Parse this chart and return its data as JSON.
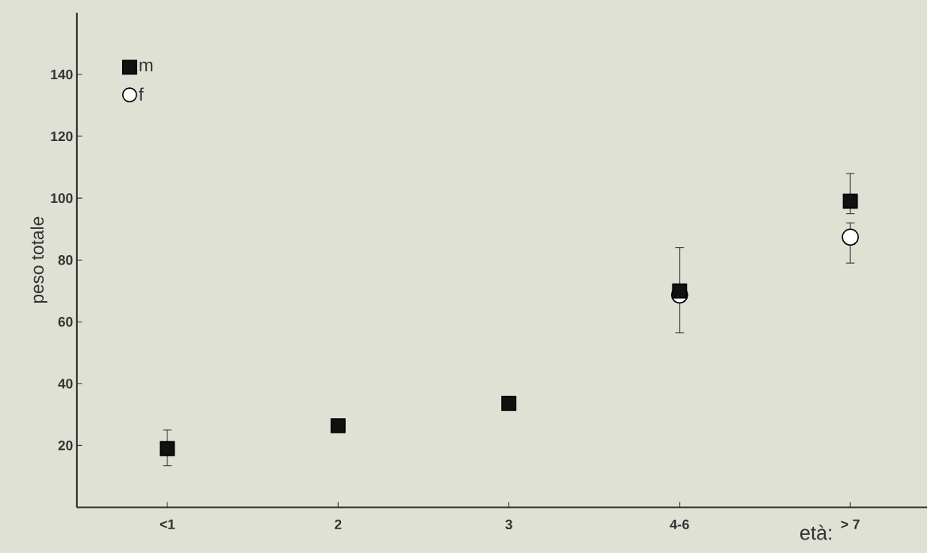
{
  "chart_data": {
    "type": "scatter",
    "xlabel": "età:",
    "ylabel": "peso totale",
    "categories": [
      "<1",
      "2",
      "3",
      "4-6",
      "> 7"
    ],
    "series": [
      {
        "name": "m",
        "color": "#111111",
        "marker": "square",
        "values": [
          19,
          26.4,
          33.6,
          70,
          99
        ],
        "errors": [
          [
            13.5,
            25
          ],
          null,
          null,
          [
            56.5,
            84
          ],
          [
            95,
            108
          ]
        ]
      },
      {
        "name": "f",
        "color": "#ffffff",
        "marker": "circle",
        "values": [
          null,
          null,
          null,
          68.7,
          87.4
        ],
        "errors": [
          null,
          null,
          null,
          null,
          [
            79,
            92
          ]
        ]
      }
    ],
    "ylim": [
      0,
      160
    ],
    "yticks": [
      20,
      40,
      60,
      80,
      100,
      120,
      140
    ],
    "legend": "top left",
    "grid": false
  }
}
